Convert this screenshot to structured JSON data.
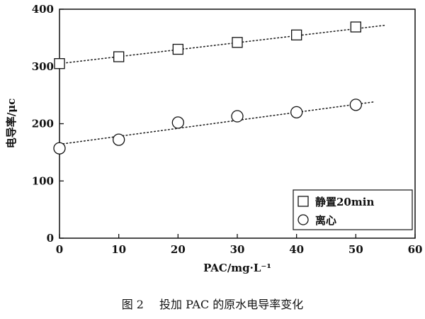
{
  "caption": {
    "number": "图 2",
    "text": "投加 PAC 的原水电导率变化"
  },
  "chart_data": {
    "type": "scatter",
    "xlabel": "PAC/mg·L⁻¹",
    "ylabel": "电导率/μc",
    "xlim": [
      0,
      60
    ],
    "ylim": [
      0,
      400
    ],
    "xticks": [
      0,
      10,
      20,
      30,
      40,
      50,
      60
    ],
    "yticks": [
      0,
      100,
      200,
      300,
      400
    ],
    "grid": false,
    "legend_position": "bottom-right",
    "series": [
      {
        "name": "静置20min",
        "marker": "square",
        "x": [
          0,
          10,
          20,
          30,
          40,
          50
        ],
        "y": [
          305,
          317,
          330,
          342,
          355,
          369
        ],
        "trend": [
          [
            0,
            305
          ],
          [
            55,
            372
          ]
        ]
      },
      {
        "name": "离心",
        "marker": "circle",
        "x": [
          0,
          10,
          20,
          30,
          40,
          50
        ],
        "y": [
          157,
          172,
          202,
          213,
          220,
          233
        ],
        "trend": [
          [
            0,
            164
          ],
          [
            53,
            238
          ]
        ]
      }
    ]
  }
}
